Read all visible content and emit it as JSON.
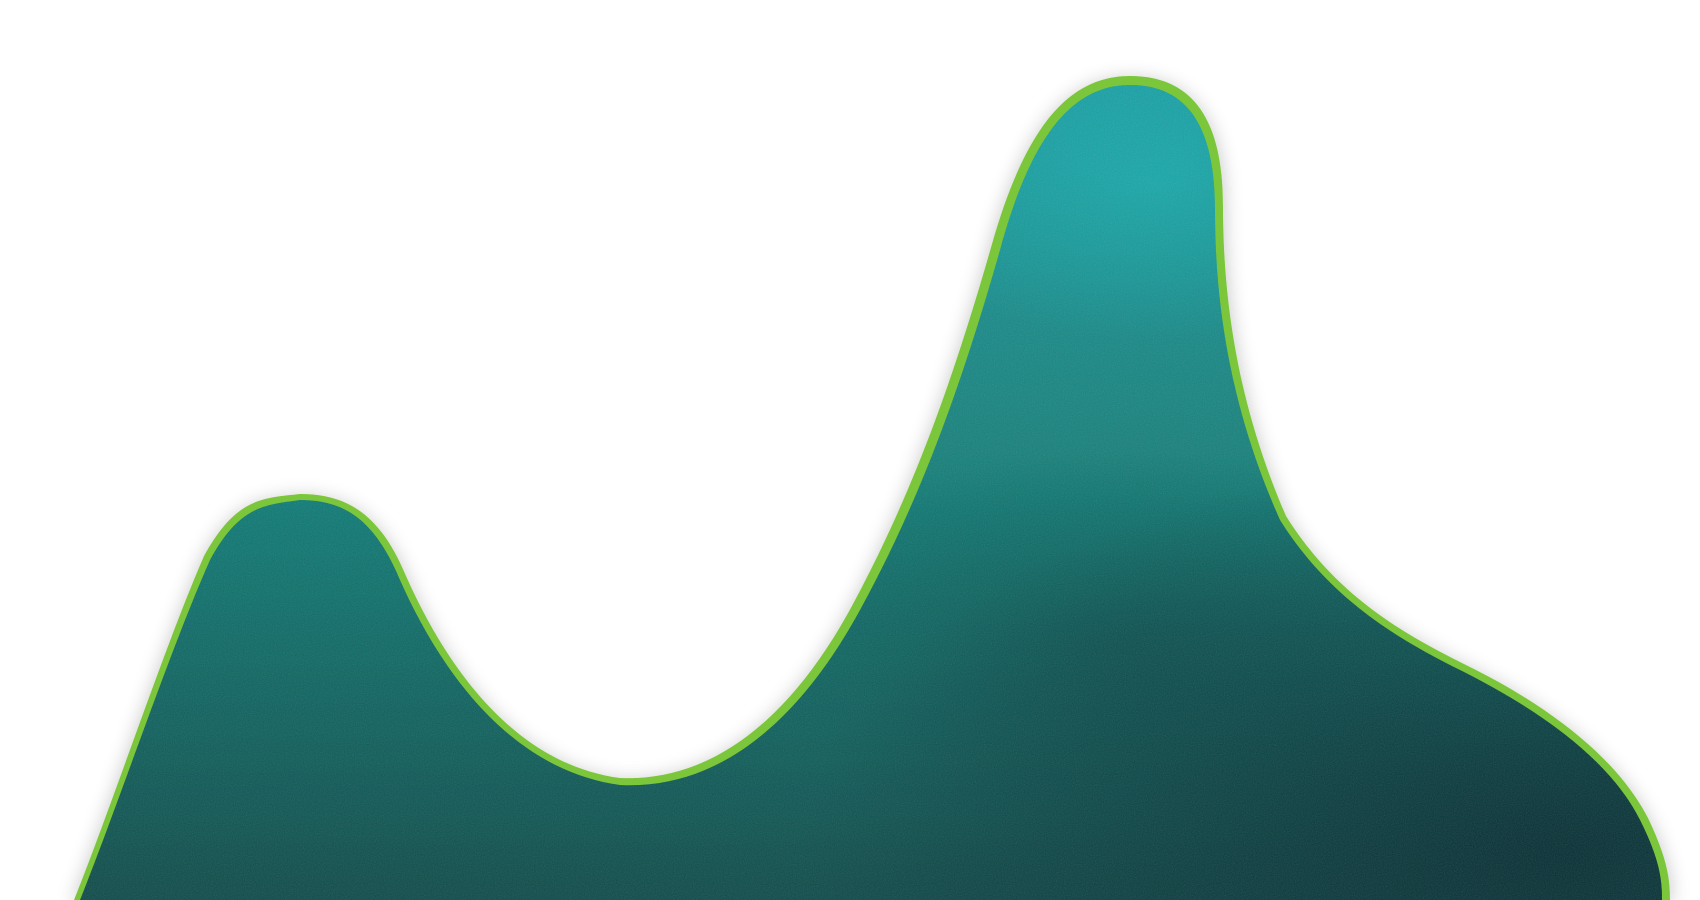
{
  "artwork": {
    "subject": "two-peak-painted-hills",
    "colors": {
      "background": "#ffffff",
      "dark_teal": "#0a4a48",
      "teal": "#12807a",
      "bright_teal": "#139aa0",
      "lime_edge": "#7cc63a",
      "deep_shadow": "#052a30"
    }
  }
}
